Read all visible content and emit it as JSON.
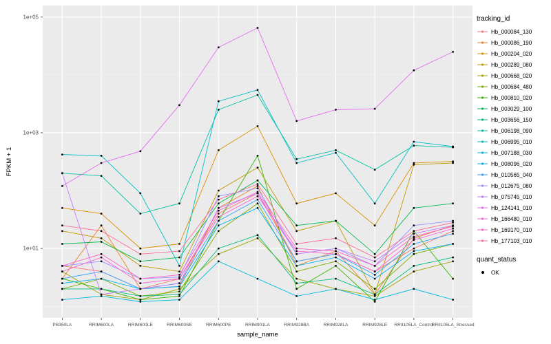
{
  "chart_data": {
    "type": "line",
    "title": "",
    "xlabel": "sample_name",
    "ylabel": "FPKM + 1",
    "y_scale": "log10",
    "ylim_log": [
      -0.2,
      5.2
    ],
    "y_ticks": [
      {
        "label": "1e+01",
        "log": 1
      },
      {
        "label": "1e+03",
        "log": 3
      },
      {
        "label": "1e+05",
        "log": 5
      }
    ],
    "y_minor_logs": [
      0,
      2,
      4
    ],
    "grid": true,
    "panel_bg": "#EBEBEB",
    "grid_color": "#FFFFFF",
    "point_color": "#000000",
    "legend_position": "right",
    "categories": [
      "PB350LA",
      "RRIM600LA",
      "RRIM600LE",
      "RRIM600SE",
      "RRIM600PE",
      "RRIM901LA",
      "RRIM928BA",
      "RRIM928LA",
      "RRIM928LE",
      "RRII105LA_Control",
      "RRII105LA_Stressed"
    ],
    "series": [
      {
        "name": "Hb_000084_130",
        "color": "#F8766D",
        "values": [
          5,
          4,
          2,
          3,
          40,
          90,
          6,
          8,
          4,
          10,
          20
        ]
      },
      {
        "name": "Hb_000086_190",
        "color": "#EA8331",
        "values": [
          3,
          25,
          2,
          2.2,
          50,
          120,
          5,
          9,
          1.6,
          15,
          25
        ]
      },
      {
        "name": "Hb_000204_020",
        "color": "#D89000",
        "values": [
          50,
          40,
          10,
          12,
          500,
          1300,
          60,
          90,
          25,
          300,
          320
        ]
      },
      {
        "name": "Hb_000289_080",
        "color": "#C09B00",
        "values": [
          20,
          15,
          5,
          4,
          100,
          250,
          20,
          30,
          1.6,
          280,
          300
        ]
      },
      {
        "name": "Hb_000668_020",
        "color": "#A3A500",
        "values": [
          4,
          1.6,
          1.3,
          2,
          8,
          15,
          3,
          2,
          1.5,
          4,
          6
        ]
      },
      {
        "name": "Hb_000684_480",
        "color": "#7CAE00",
        "values": [
          2,
          3,
          1.5,
          1.8,
          20,
          60,
          4,
          6,
          2,
          8,
          12
        ]
      },
      {
        "name": "Hb_000810_020",
        "color": "#39B600",
        "values": [
          3,
          2,
          1.3,
          1.5,
          30,
          400,
          2,
          5,
          1.2,
          20,
          3
        ]
      },
      {
        "name": "Hb_003029_100",
        "color": "#00BB4E",
        "values": [
          12,
          13,
          6,
          7,
          60,
          150,
          25,
          30,
          8,
          50,
          60
        ]
      },
      {
        "name": "Hb_003656_150",
        "color": "#00BF7D",
        "values": [
          2,
          2,
          1.5,
          1.6,
          10,
          17,
          2.5,
          3,
          1.6,
          5,
          7
        ]
      },
      {
        "name": "Hb_006198_090",
        "color": "#00C1A3",
        "values": [
          200,
          180,
          40,
          60,
          2500,
          4500,
          350,
          500,
          230,
          600,
          560
        ]
      },
      {
        "name": "Hb_006995_010",
        "color": "#00BFC4",
        "values": [
          420,
          400,
          90,
          5,
          3500,
          5500,
          300,
          450,
          60,
          700,
          580
        ]
      },
      {
        "name": "Hb_007188_030",
        "color": "#00BAE0",
        "values": [
          1.3,
          1.5,
          1.2,
          1.3,
          6,
          3,
          1.5,
          2,
          1.3,
          2,
          1.3
        ]
      },
      {
        "name": "Hb_008096_020",
        "color": "#00B0F6",
        "values": [
          2.5,
          3,
          2,
          2.2,
          25,
          50,
          5,
          7,
          3,
          9,
          12
        ]
      },
      {
        "name": "Hb_010565_040",
        "color": "#35A2FF",
        "values": [
          3,
          4,
          2,
          2.5,
          30,
          70,
          6,
          8,
          3.5,
          12,
          18
        ]
      },
      {
        "name": "Hb_012675_080",
        "color": "#9590FF",
        "values": [
          5,
          6,
          3,
          3.2,
          80,
          110,
          8,
          10,
          5,
          25,
          30
        ]
      },
      {
        "name": "Hb_075745_010",
        "color": "#C77CFF",
        "values": [
          200,
          1.6,
          2,
          2.5,
          50,
          90,
          8,
          10,
          6,
          18,
          25
        ]
      },
      {
        "name": "Hb_124141_010",
        "color": "#E76BF3",
        "values": [
          120,
          300,
          480,
          3000,
          30000,
          65000,
          1600,
          2500,
          2600,
          12000,
          25000
        ]
      },
      {
        "name": "Hb_166480_010",
        "color": "#FA62DB",
        "values": [
          4,
          7,
          2.5,
          3,
          35,
          80,
          9,
          8,
          4,
          14,
          22
        ]
      },
      {
        "name": "Hb_169170_010",
        "color": "#FF61CC",
        "values": [
          5,
          8,
          3,
          3.5,
          45,
          95,
          10,
          9,
          5,
          16,
          24
        ]
      },
      {
        "name": "Hb_177103_010",
        "color": "#FF6A98",
        "values": [
          25,
          20,
          8,
          9,
          70,
          130,
          12,
          15,
          7,
          20,
          28
        ]
      }
    ],
    "legend": {
      "tracking_title": "tracking_id",
      "quant_title": "quant_status",
      "quant_value": "OK"
    }
  }
}
